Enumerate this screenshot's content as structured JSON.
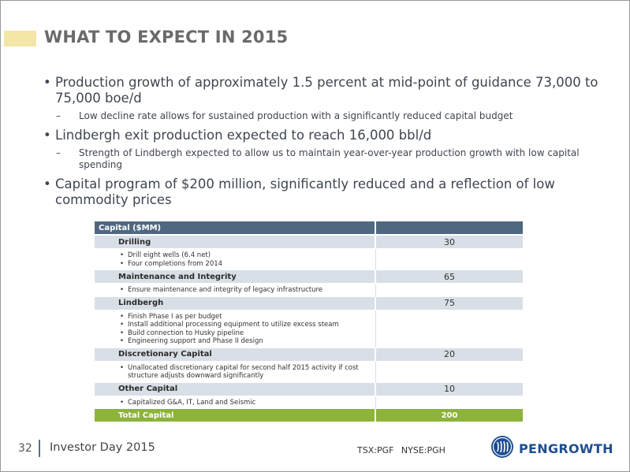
{
  "slide": {
    "title": "WHAT TO EXPECT IN 2015",
    "bullets": [
      {
        "text": "Production growth of approximately 1.5 percent at mid-point of guidance 73,000 to 75,000 boe/d",
        "sub": "Low decline rate allows for sustained production with a significantly reduced capital budget"
      },
      {
        "text": "Lindbergh exit production expected to reach 16,000 bbl/d",
        "sub": "Strength of Lindbergh expected to allow us to maintain year-over-year production growth with low capital spending"
      },
      {
        "text": "Capital program of $200 million, significantly reduced and a reflection of low commodity prices"
      }
    ]
  },
  "table": {
    "header": "Capital ($MM)",
    "rows": [
      {
        "label": "Drilling",
        "value": "30",
        "details": [
          "Drill eight wells (6.4 net)",
          "Four completions from 2014"
        ]
      },
      {
        "label": "Maintenance and Integrity",
        "value": "65",
        "details": [
          "Ensure maintenance and integrity of legacy infrastructure"
        ]
      },
      {
        "label": "Lindbergh",
        "value": "75",
        "details": [
          "Finish Phase I as per budget",
          "Install additional processing equipment to utilize excess steam",
          "Build connection to Husky pipeline",
          "Engineering support and Phase II design"
        ]
      },
      {
        "label": "Discretionary Capital",
        "value": "20",
        "details": [
          "Unallocated discretionary capital for second half 2015 activity if cost structure adjusts downward significantly"
        ]
      },
      {
        "label": "Other Capital",
        "value": "10",
        "details": [
          "Capitalized G&A, IT, Land and Seismic"
        ]
      }
    ],
    "total_label": "Total Capital",
    "total_value": "200"
  },
  "footer": {
    "page_number": "32",
    "event": "Investor Day 2015",
    "tickers": "TSX:PGF NYSE:PGH",
    "logo_text": "PENGROWTH"
  },
  "colors": {
    "header_blue": "#4f6880",
    "row_grey": "#d8dfe6",
    "total_green": "#8cb33a",
    "title_accent": "#f3e6a6",
    "logo_blue": "#1d4e8e"
  }
}
